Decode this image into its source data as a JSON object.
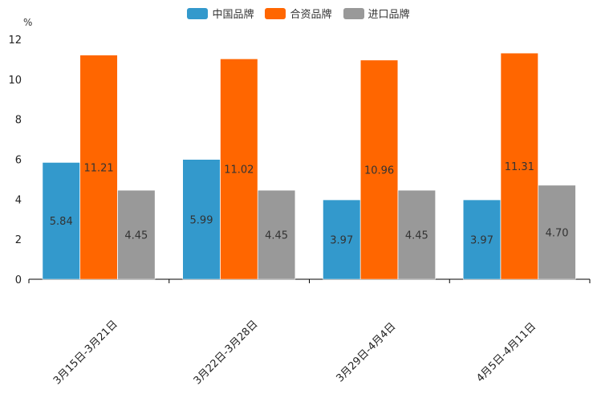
{
  "chart_data": {
    "type": "bar",
    "title": "",
    "unit": "%",
    "xlabel": "",
    "ylabel": "%",
    "ylim": [
      0,
      12
    ],
    "yticks": [
      0,
      2,
      4,
      6,
      8,
      10,
      12
    ],
    "grid": false,
    "legend_position": "top-center",
    "categories": [
      "3月15日-3月21日",
      "3月22日-3月28日",
      "3月29日-4月4日",
      "4月5日-4月11日"
    ],
    "series": [
      {
        "name": "中国品牌",
        "color": "#3399cc",
        "values": [
          5.84,
          5.99,
          3.97,
          3.97
        ]
      },
      {
        "name": "合资品牌",
        "color": "#ff6600",
        "values": [
          11.21,
          11.02,
          10.96,
          11.31
        ]
      },
      {
        "name": "进口品牌",
        "color": "#999999",
        "values": [
          4.45,
          4.45,
          4.45,
          4.7
        ]
      }
    ]
  }
}
